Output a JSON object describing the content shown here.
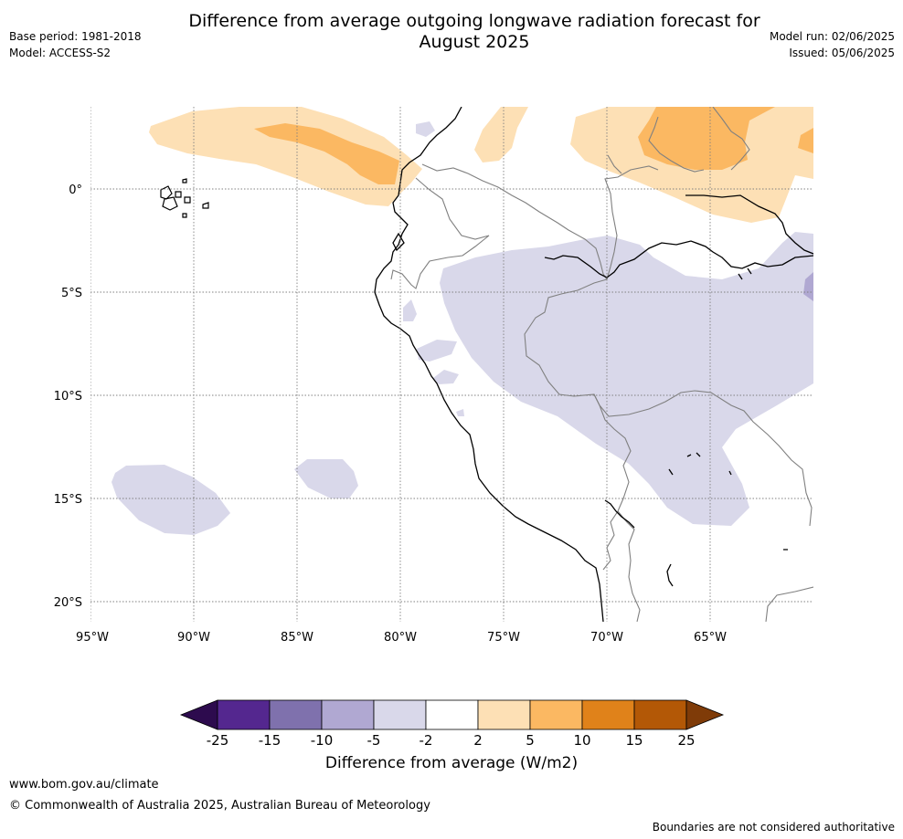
{
  "title": {
    "line1": "Difference from average outgoing longwave radiation forecast for",
    "line2": "August 2025"
  },
  "meta_left": {
    "base_period": "Base period: 1981-2018",
    "model": "Model: ACCESS-S2"
  },
  "meta_right": {
    "model_run": "Model run: 02/06/2025",
    "issued": "Issued: 05/06/2025"
  },
  "map": {
    "lat_labels": [
      "0°",
      "5°S",
      "10°S",
      "15°S",
      "20°S"
    ],
    "lon_labels": [
      "95°W",
      "90°W",
      "85°W",
      "80°W",
      "75°W",
      "70°W",
      "65°W"
    ],
    "region": "Northwestern South America"
  },
  "colorbar": {
    "ticks": [
      "-25",
      "-15",
      "-10",
      "-5",
      "-2",
      "2",
      "5",
      "10",
      "15",
      "25"
    ],
    "colors": [
      "#2d0b4e",
      "#54278f",
      "#7f71ad",
      "#b0a8d2",
      "#d9d8ea",
      "#ffffff",
      "#fde0b5",
      "#fbb862",
      "#e0821a",
      "#b35806",
      "#7f3b08"
    ],
    "label": "Difference from average (W/m2)"
  },
  "footer": {
    "url": "www.bom.gov.au/climate",
    "copyright": "© Commonwealth of Australia 2025, Australian Bureau of Meteorology",
    "note": "Boundaries are not considered authoritative"
  }
}
